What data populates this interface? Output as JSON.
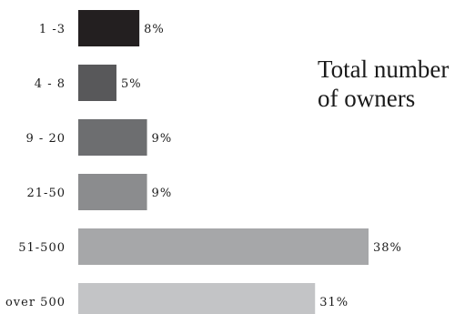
{
  "chart_data": {
    "type": "bar",
    "orientation": "horizontal",
    "title_lines": [
      "Total number",
      "of owners"
    ],
    "categories": [
      "1 -3",
      "4 - 8",
      "9 - 20",
      "21-50",
      "51-500",
      "over 500"
    ],
    "values": [
      8,
      5,
      9,
      9,
      38,
      31
    ],
    "value_labels": [
      "8%",
      "5%",
      "9%",
      "9%",
      "38%",
      "31%"
    ],
    "unit": "%",
    "xlim": [
      0,
      38
    ],
    "grid": false,
    "legend": "none",
    "colors": [
      "#231f20",
      "#58585a",
      "#6d6e70",
      "#8b8c8e",
      "#a6a7a9",
      "#c3c4c6"
    ]
  }
}
